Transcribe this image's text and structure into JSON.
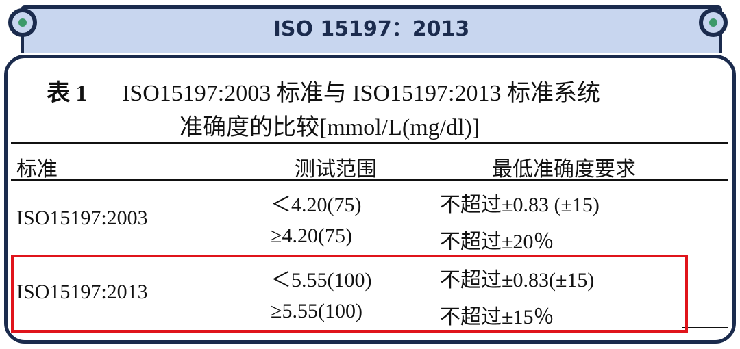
{
  "header": {
    "title": "ISO 15197：2013"
  },
  "caption": {
    "label": "表 1",
    "lines": [
      "ISO15197:2003 标准与 ISO15197:2013 标准系统",
      "准确度的比较[mmol/L(mg/dl)]"
    ]
  },
  "table": {
    "columns": [
      "标准",
      "测试范围",
      "最低准确度要求"
    ],
    "groups": [
      {
        "standard": "ISO15197:2003",
        "rows": [
          [
            "＜4.20(75)",
            "不超过±0.83 (±15)"
          ],
          [
            "≥4.20(75)",
            "不超过±20％"
          ]
        ]
      },
      {
        "standard": "ISO15197:2013",
        "rows": [
          [
            "＜5.55(100)",
            "不超过±0.83(±15)"
          ],
          [
            "≥5.55(100)",
            "不超过±15％"
          ]
        ]
      }
    ]
  }
}
